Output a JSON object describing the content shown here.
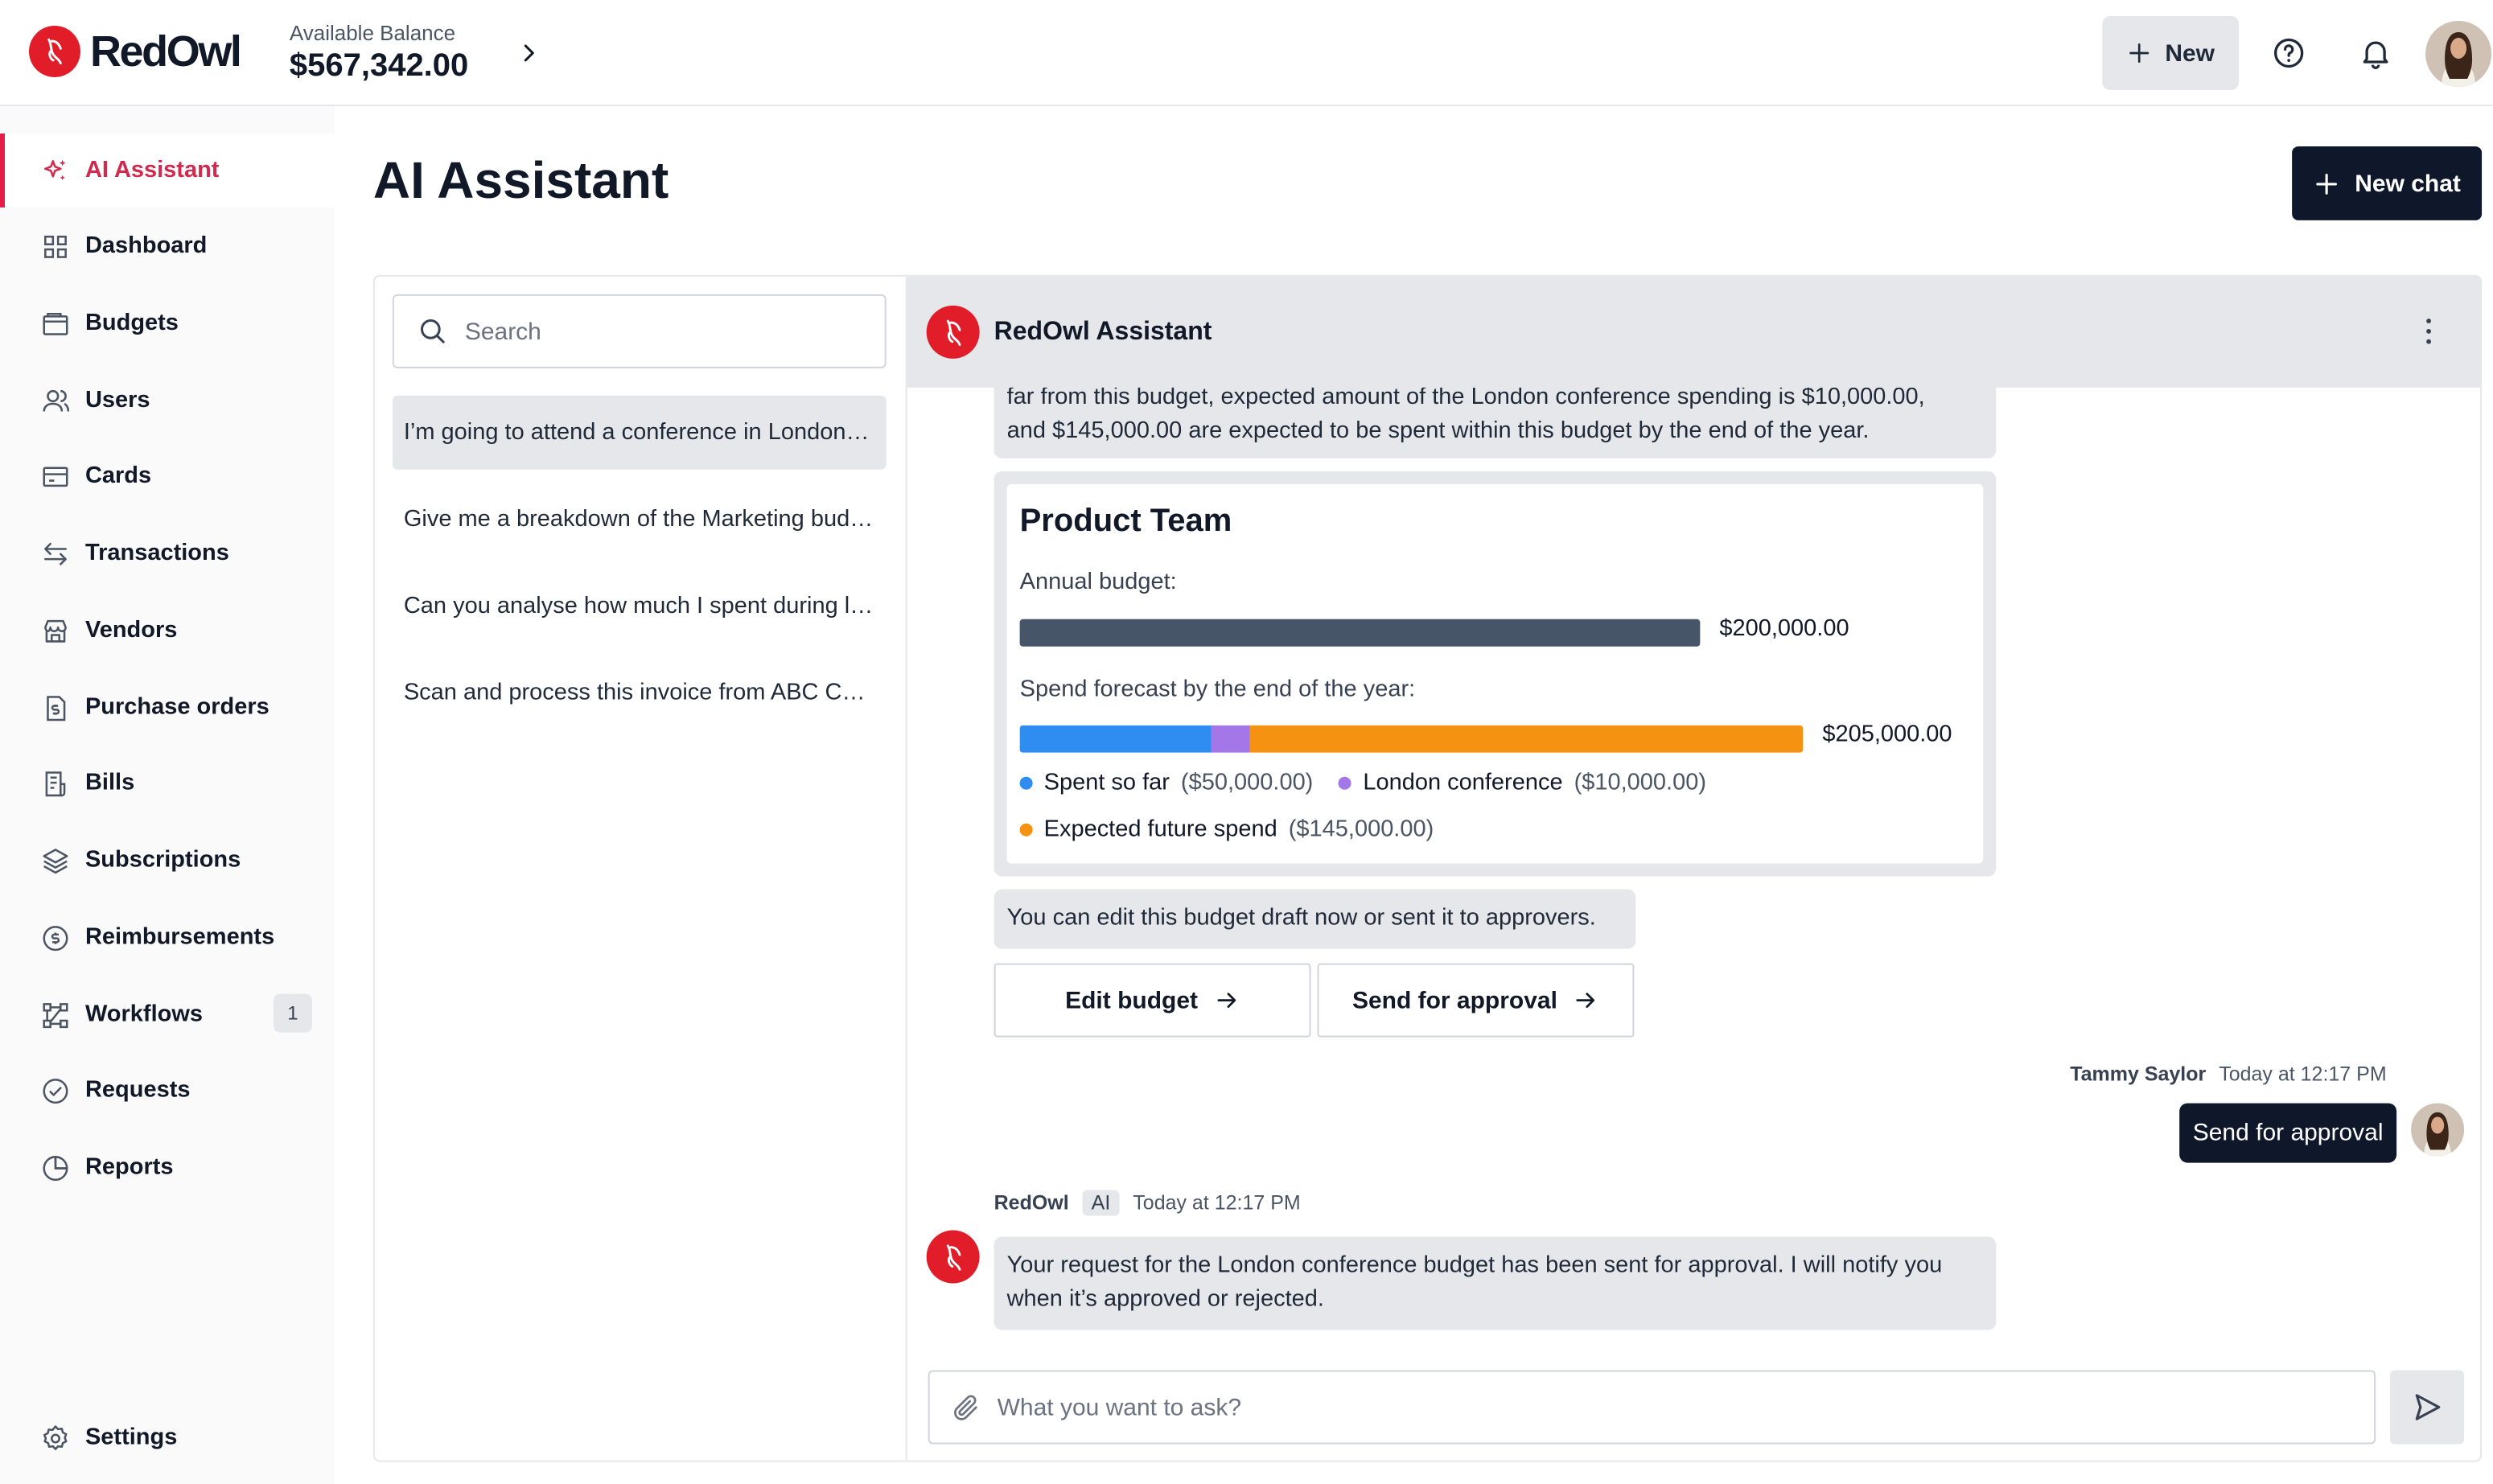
{
  "brand": {
    "name": "RedOwl"
  },
  "balance": {
    "label": "Available Balance",
    "value": "$567,342.00"
  },
  "topbar": {
    "new_label": "New"
  },
  "sidebar": {
    "items": [
      {
        "label": "AI Assistant",
        "icon": "sparkles-icon",
        "active": true
      },
      {
        "label": "Dashboard",
        "icon": "grid-icon"
      },
      {
        "label": "Budgets",
        "icon": "wallet-icon"
      },
      {
        "label": "Users",
        "icon": "users-icon"
      },
      {
        "label": "Cards",
        "icon": "card-icon"
      },
      {
        "label": "Transactions",
        "icon": "arrows-icon"
      },
      {
        "label": "Vendors",
        "icon": "store-icon"
      },
      {
        "label": "Purchase orders",
        "icon": "document-dollar-icon"
      },
      {
        "label": "Bills",
        "icon": "receipt-icon"
      },
      {
        "label": "Subscriptions",
        "icon": "layers-icon"
      },
      {
        "label": "Reimbursements",
        "icon": "coin-icon"
      },
      {
        "label": "Workflows",
        "icon": "workflow-icon",
        "badge": "1"
      },
      {
        "label": "Requests",
        "icon": "check-circle-icon"
      },
      {
        "label": "Reports",
        "icon": "pie-chart-icon"
      }
    ],
    "settings_label": "Settings"
  },
  "main": {
    "title": "AI Assistant",
    "new_chat_label": "New chat"
  },
  "chat_list": {
    "search_placeholder": "Search",
    "conversations": [
      "I’m going to attend a conference in London and need a budget for it",
      "Give me a breakdown of the Marketing budget",
      "Can you analyse how much I spent during last quarter",
      "Scan and process this invoice from ABC Company"
    ]
  },
  "chat": {
    "title": "RedOwl Assistant",
    "partial_message_line1": "far from this budget, expected amount of the London conference spending is $10,000.00,",
    "partial_message_line2": "and $145,000.00 are expected to be spent within this budget by the end of the year.",
    "budget_card": {
      "title": "Product Team",
      "annual_label": "Annual budget:",
      "annual_value": "$200,000.00",
      "forecast_label": "Spend forecast by the end of the year:",
      "forecast_value": "$205,000.00",
      "segments": [
        {
          "label": "Spent so far",
          "amount": "($50,000.00)",
          "value": 50000,
          "color": "#2f8cf0"
        },
        {
          "label": "London conference",
          "amount": "($10,000.00)",
          "value": 10000,
          "color": "#a477e8"
        },
        {
          "label": "Expected future spend",
          "amount": "($145,000.00)",
          "value": 145000,
          "color": "#f59211"
        }
      ]
    },
    "edit_prompt": "You can edit this budget draft now or sent it to approvers.",
    "edit_button": "Edit budget",
    "send_button": "Send for approval",
    "user_message": {
      "author": "Tammy Saylor",
      "time": "Today at 12:17 PM",
      "text": "Send for approval"
    },
    "bot_reply": {
      "author": "RedOwl",
      "tag": "AI",
      "time": "Today at 12:17 PM",
      "line1": "Your request for the London conference budget has been sent for approval. I will notify you",
      "line2": "when it’s approved or rejected."
    },
    "composer_placeholder": "What you want to ask?"
  }
}
